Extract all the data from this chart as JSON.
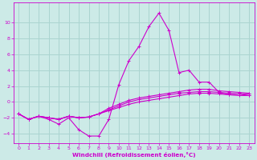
{
  "xlabel": "Windchill (Refroidissement éolien,°C)",
  "bg_color": "#cceae7",
  "grid_color": "#aad4d0",
  "line_color": "#cc00cc",
  "xlim": [
    -0.5,
    23.5
  ],
  "ylim": [
    -5.2,
    12.5
  ],
  "xticks": [
    0,
    1,
    2,
    3,
    4,
    5,
    6,
    7,
    8,
    9,
    10,
    11,
    12,
    13,
    14,
    15,
    16,
    17,
    18,
    19,
    20,
    21,
    22,
    23
  ],
  "yticks": [
    -4,
    -2,
    0,
    2,
    4,
    6,
    8,
    10
  ],
  "series_spiky": [
    -1.5,
    -2.2,
    -1.8,
    -2.2,
    -2.8,
    -2.0,
    -3.5,
    -4.3,
    -4.3,
    -2.2,
    2.2,
    5.2,
    7.0,
    9.5,
    11.2,
    9.0,
    3.7,
    4.0,
    2.5,
    2.5,
    1.2,
    0.9,
    1.0,
    0.8
  ],
  "series_flat1": [
    -1.5,
    -2.2,
    -1.8,
    -2.0,
    -2.2,
    -1.8,
    -2.0,
    -1.9,
    -1.5,
    -1.0,
    -0.5,
    0.0,
    0.3,
    0.5,
    0.7,
    0.9,
    1.1,
    1.2,
    1.3,
    1.3,
    1.2,
    1.1,
    1.0,
    1.0
  ],
  "series_flat2": [
    -1.5,
    -2.2,
    -1.8,
    -2.0,
    -2.2,
    -1.8,
    -2.0,
    -1.9,
    -1.5,
    -0.8,
    -0.3,
    0.2,
    0.5,
    0.7,
    0.9,
    1.1,
    1.3,
    1.5,
    1.6,
    1.6,
    1.4,
    1.3,
    1.2,
    1.1
  ],
  "series_flat3": [
    -1.5,
    -2.2,
    -1.8,
    -2.0,
    -2.2,
    -1.8,
    -2.0,
    -1.9,
    -1.5,
    -1.1,
    -0.7,
    -0.3,
    0.0,
    0.2,
    0.4,
    0.6,
    0.8,
    1.0,
    1.1,
    1.1,
    1.0,
    0.9,
    0.8,
    0.8
  ]
}
